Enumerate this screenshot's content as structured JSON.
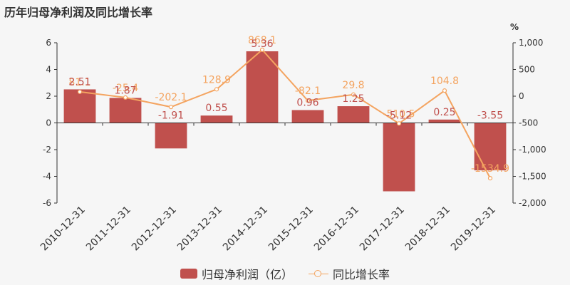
{
  "title": "历年归母净利润及同比增长率",
  "colors": {
    "bar": "#c0504d",
    "line": "#f4a460"
  },
  "chart_data": {
    "type": "bar",
    "categories": [
      "2010-12-31",
      "2011-12-31",
      "2012-12-31",
      "2013-12-31",
      "2014-12-31",
      "2015-12-31",
      "2016-12-31",
      "2017-12-31",
      "2018-12-31",
      "2019-12-31"
    ],
    "series": [
      {
        "name": "归母净利润（亿）",
        "type": "bar",
        "axis": "left",
        "values": [
          2.51,
          1.87,
          -1.91,
          0.55,
          5.36,
          0.96,
          1.25,
          -5.12,
          0.25,
          -3.55
        ],
        "labels": [
          "2.51",
          "1.87",
          "-1.91",
          "0.55",
          "5.36",
          "0.96",
          "1.25",
          "-5.12",
          "0.25",
          "-3.55"
        ]
      },
      {
        "name": "同比增长率",
        "type": "line",
        "axis": "right",
        "values": [
          81.1,
          -25.4,
          -202.1,
          128.9,
          868.1,
          -82.1,
          29.8,
          -510.5,
          104.8,
          -1534.9
        ],
        "labels": [
          "81.1",
          "-25.4",
          "-202.1",
          "128.9",
          "868.1",
          "-82.1",
          "29.8",
          "-510.5",
          "104.8",
          "-1534.9"
        ]
      }
    ],
    "y_left": {
      "ylim": [
        -6,
        6
      ],
      "ticks": [
        6,
        4,
        2,
        0,
        -2,
        -4,
        -6
      ],
      "tick_labels": [
        "6",
        "4",
        "2",
        "0",
        "-2",
        "-4",
        "-6"
      ]
    },
    "y_right": {
      "unit": "%",
      "ylim": [
        -2000,
        1000
      ],
      "ticks": [
        1000,
        500,
        0,
        -500,
        -1000,
        -1500,
        -2000
      ],
      "tick_labels": [
        "1,000",
        "500",
        "0",
        "-500",
        "-1,000",
        "-1,500",
        "-2,000"
      ]
    },
    "legend": {
      "position": "bottom",
      "entries": [
        "归母净利润（亿）",
        "同比增长率"
      ]
    }
  }
}
